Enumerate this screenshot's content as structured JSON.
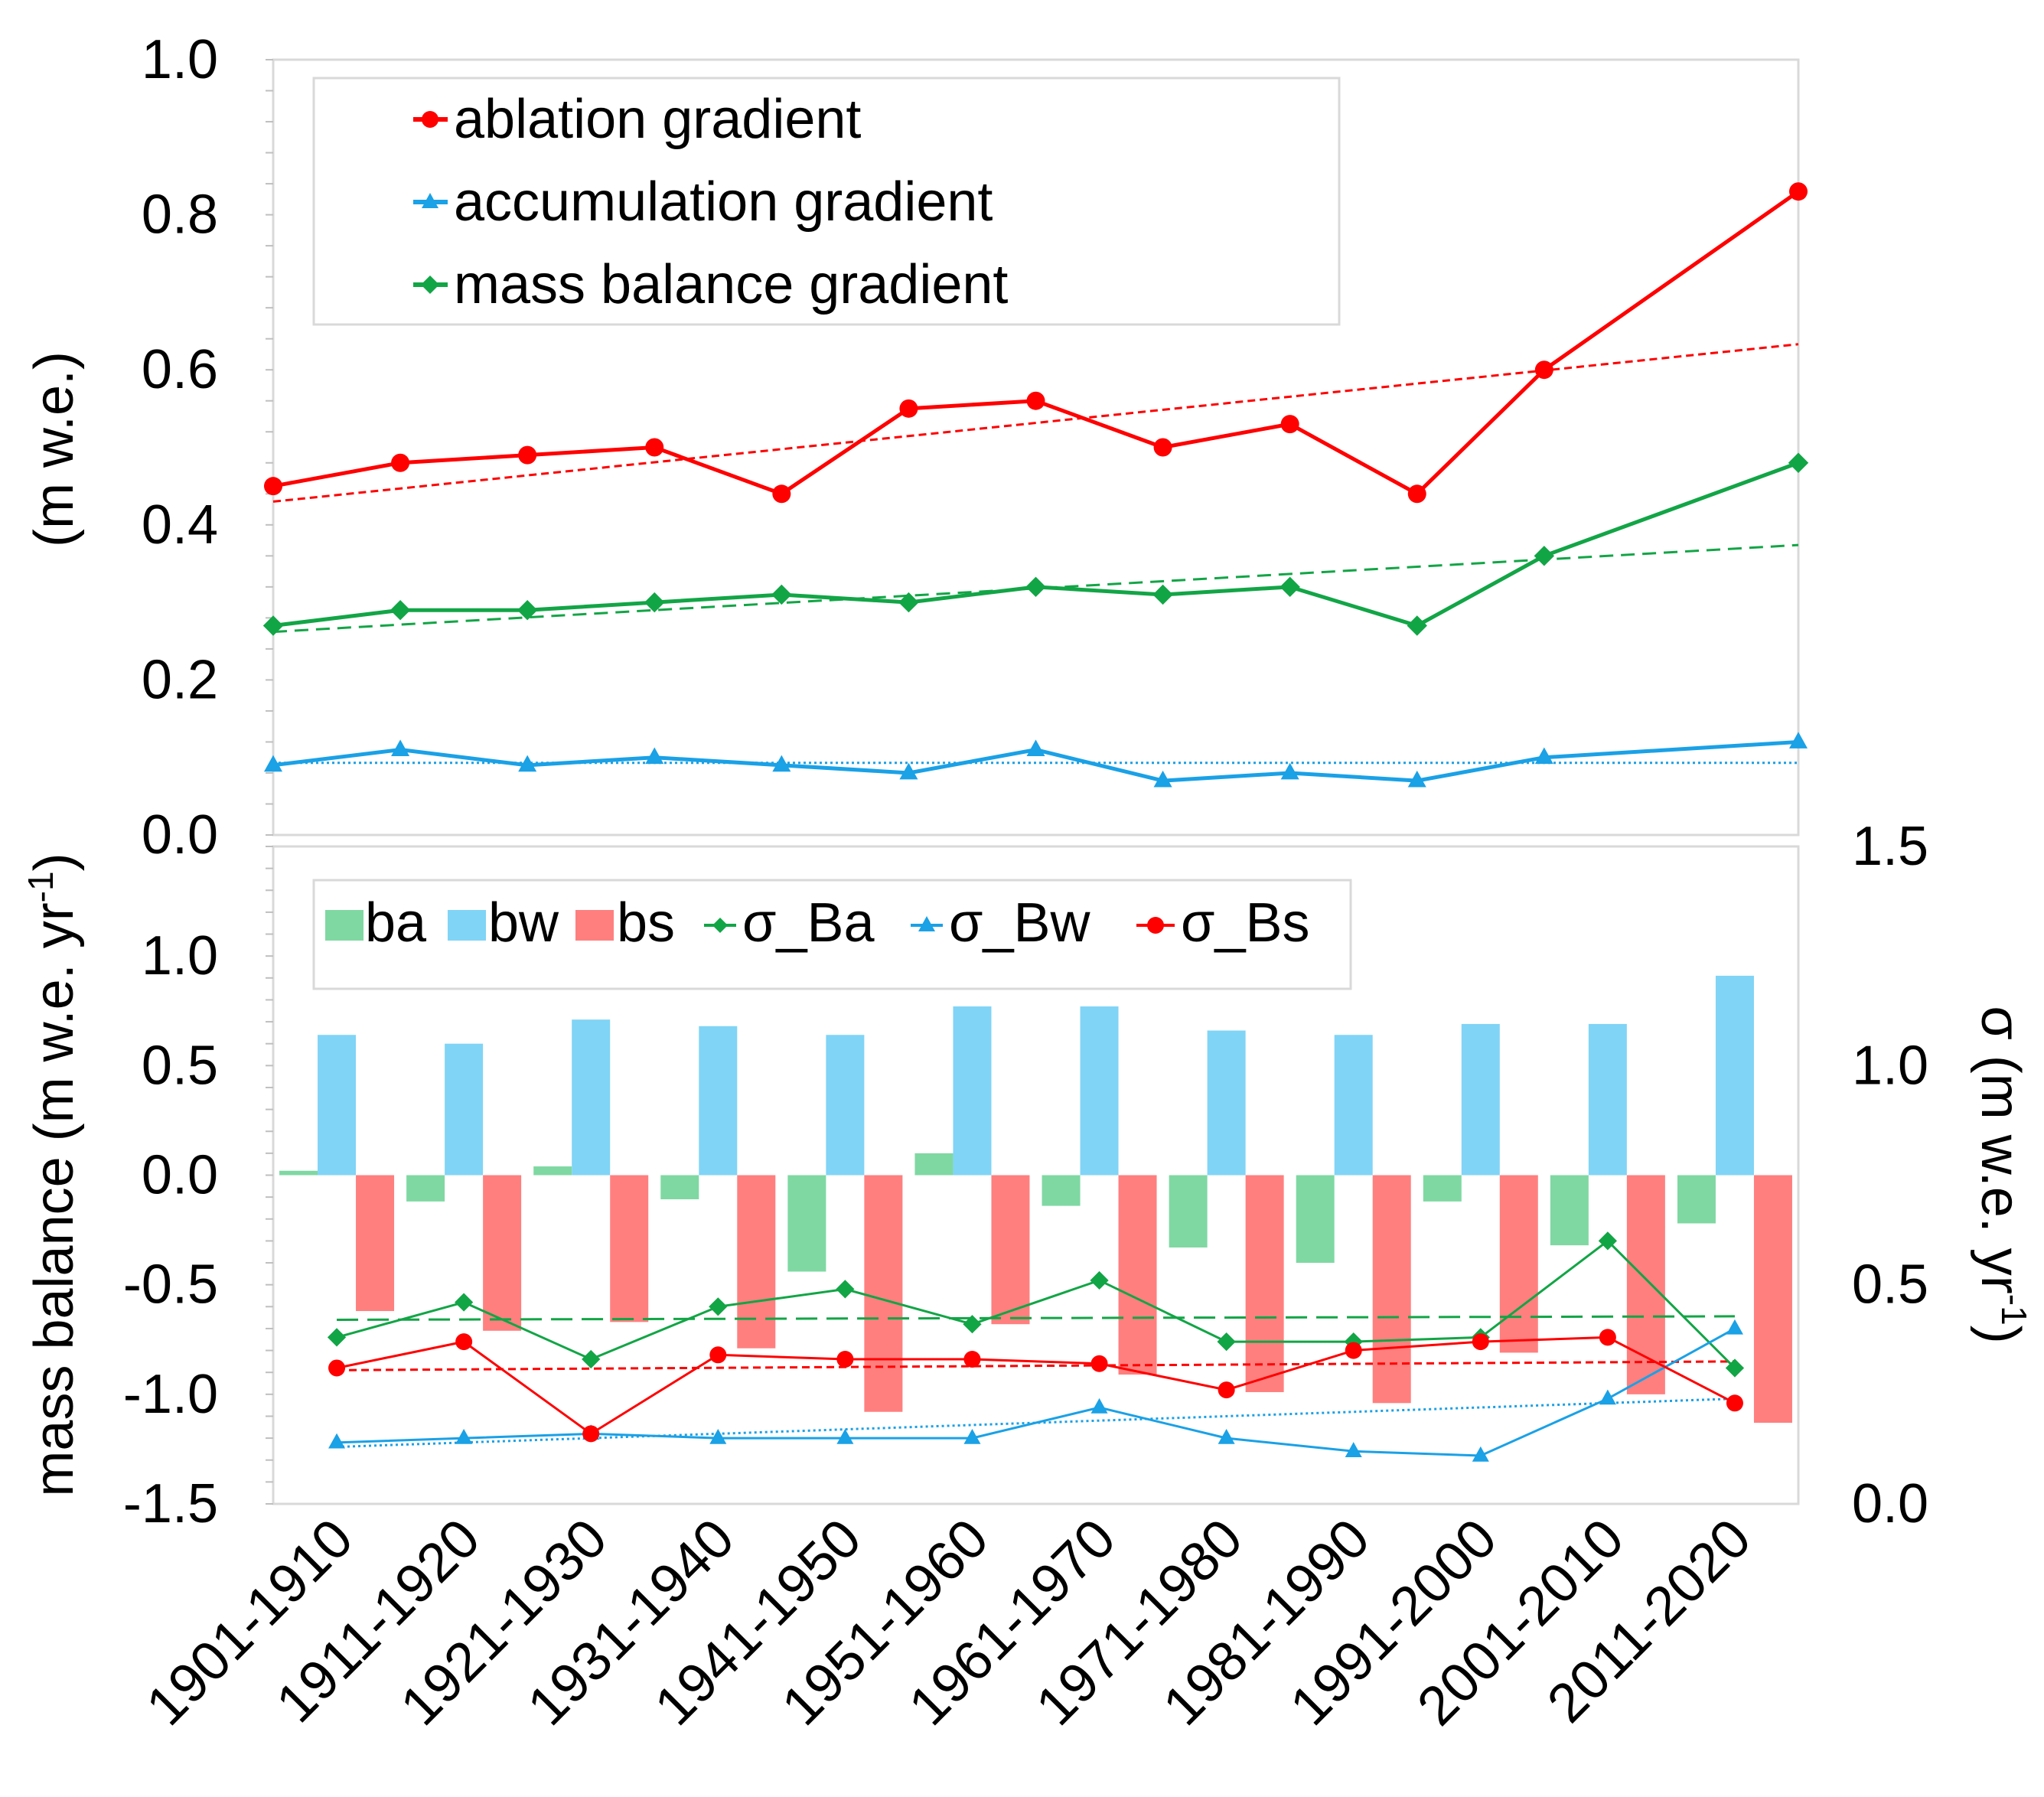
{
  "categories": [
    "1901-1910",
    "1911-1920",
    "1921-1930",
    "1931-1940",
    "1941-1950",
    "1951-1960",
    "1961-1970",
    "1971-1980",
    "1981-1990",
    "1991-2000",
    "2001-2010",
    "2011-2020"
  ],
  "colors": {
    "ablation": "#ff0000",
    "accumulation": "#1aa1e6",
    "mass_balance": "#12a546",
    "ba": "#7fd8a2",
    "bw": "#80d4f6",
    "bs": "#ff7f7f",
    "sigma_ba": "#12a546",
    "sigma_bw": "#1aa1e6",
    "sigma_bs": "#ff0000"
  },
  "chart_data": [
    {
      "type": "line",
      "panel": "top",
      "ylabel": "(m w.e.)",
      "ylim": [
        0.0,
        1.0
      ],
      "yticks": [
        "0.0",
        "0.2",
        "0.4",
        "0.6",
        "0.8",
        "1.0"
      ],
      "legend_position": "top-left",
      "series": [
        {
          "key": "ablation",
          "name": "ablation gradient",
          "marker": "circle",
          "values": [
            0.45,
            0.48,
            0.49,
            0.5,
            0.44,
            0.55,
            0.56,
            0.5,
            0.53,
            0.44,
            0.6,
            0.83
          ],
          "trend": [
            0.43,
            0.633
          ],
          "trend_style": "short-dash"
        },
        {
          "key": "accumulation",
          "name": "accumulation gradient",
          "marker": "triangle",
          "values": [
            0.09,
            0.11,
            0.09,
            0.1,
            0.09,
            0.08,
            0.11,
            0.07,
            0.08,
            0.07,
            0.1,
            0.12
          ],
          "trend": [
            0.093,
            0.093
          ],
          "trend_style": "dotted"
        },
        {
          "key": "mass_balance",
          "name": "mass balance gradient",
          "marker": "diamond",
          "values": [
            0.27,
            0.29,
            0.29,
            0.3,
            0.31,
            0.3,
            0.32,
            0.31,
            0.32,
            0.27,
            0.36,
            0.48
          ],
          "trend": [
            0.262,
            0.374
          ],
          "trend_style": "dashed"
        }
      ]
    },
    {
      "type": "bar",
      "panel": "bottom",
      "ylabel": "mass balance (m w.e. yr",
      "ylabel_sup": "-1",
      "ylabel_close": ")",
      "ylim": [
        -1.5,
        1.5
      ],
      "yticks": [
        "-1.5",
        "-1.0",
        "-0.5",
        "0.0",
        "0.5",
        "1.0"
      ],
      "y2label": "σ (m w.e. yr",
      "y2label_sup": "-1",
      "y2label_close": ")",
      "y2lim": [
        0.0,
        1.5
      ],
      "y2ticks": [
        "0.0",
        "0.5",
        "1.0",
        "1.5"
      ],
      "legend_position": "top-left",
      "bar_series": [
        {
          "key": "ba",
          "name": "ba",
          "values": [
            0.02,
            -0.12,
            0.04,
            -0.11,
            -0.44,
            0.1,
            -0.14,
            -0.33,
            -0.4,
            -0.12,
            -0.32,
            -0.22
          ]
        },
        {
          "key": "bw",
          "name": "bw",
          "values": [
            0.64,
            0.6,
            0.71,
            0.68,
            0.64,
            0.77,
            0.77,
            0.66,
            0.64,
            0.69,
            0.69,
            0.91
          ]
        },
        {
          "key": "bs",
          "name": "bs",
          "values": [
            -0.62,
            -0.71,
            -0.67,
            -0.79,
            -1.08,
            -0.68,
            -0.91,
            -0.99,
            -1.04,
            -0.81,
            -1.0,
            -1.13
          ]
        }
      ],
      "line_series": [
        {
          "key": "sigma_ba",
          "name": "σ_Ba",
          "marker": "diamond",
          "axis": "right",
          "values": [
            0.38,
            0.46,
            0.33,
            0.45,
            0.49,
            0.41,
            0.51,
            0.37,
            0.37,
            0.38,
            0.6,
            0.31
          ],
          "trend": [
            0.42,
            0.428
          ],
          "trend_style": "long-dash"
        },
        {
          "key": "sigma_bw",
          "name": "σ_Bw",
          "marker": "triangle",
          "axis": "right",
          "values": [
            0.14,
            0.15,
            0.16,
            0.15,
            0.15,
            0.15,
            0.22,
            0.15,
            0.12,
            0.11,
            0.24,
            0.4
          ],
          "trend": [
            0.13,
            0.24
          ],
          "trend_style": "dotted"
        },
        {
          "key": "sigma_bs",
          "name": "σ_Bs",
          "marker": "circle",
          "axis": "right",
          "values": [
            0.31,
            0.37,
            0.16,
            0.34,
            0.33,
            0.33,
            0.32,
            0.26,
            0.35,
            0.37,
            0.38,
            0.23
          ],
          "trend": [
            0.305,
            0.325
          ],
          "trend_style": "short-dash"
        }
      ]
    }
  ]
}
